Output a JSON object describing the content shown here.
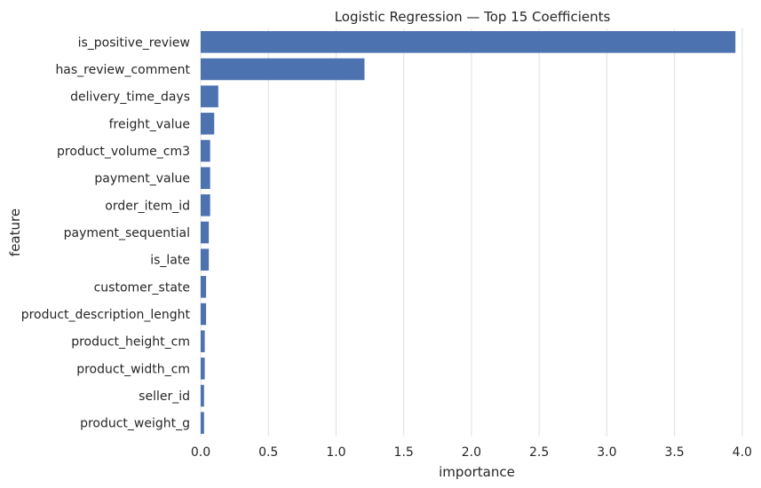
{
  "chart_data": {
    "type": "bar",
    "orientation": "horizontal",
    "title": "Logistic Regression — Top 15 Coefficients",
    "xlabel": "importance",
    "ylabel": "feature",
    "xlim": [
      0,
      4.08
    ],
    "xticks": [
      0.0,
      0.5,
      1.0,
      1.5,
      2.0,
      2.5,
      3.0,
      3.5,
      4.0
    ],
    "xtick_labels": [
      "0.0",
      "0.5",
      "1.0",
      "1.5",
      "2.0",
      "2.5",
      "3.0",
      "3.5",
      "4.0"
    ],
    "grid": "vertical",
    "bar_color": "#4c72b0",
    "background_color": "#ffffff",
    "grid_color": "#e5e5e5",
    "categories": [
      "is_positive_review",
      "has_review_comment",
      "delivery_time_days",
      "freight_value",
      "product_volume_cm3",
      "payment_value",
      "order_item_id",
      "payment_sequential",
      "is_late",
      "customer_state",
      "product_description_lenght",
      "product_height_cm",
      "product_width_cm",
      "seller_id",
      "product_weight_g"
    ],
    "values": [
      3.95,
      1.21,
      0.13,
      0.1,
      0.07,
      0.07,
      0.07,
      0.06,
      0.06,
      0.04,
      0.04,
      0.03,
      0.03,
      0.025,
      0.025
    ]
  }
}
